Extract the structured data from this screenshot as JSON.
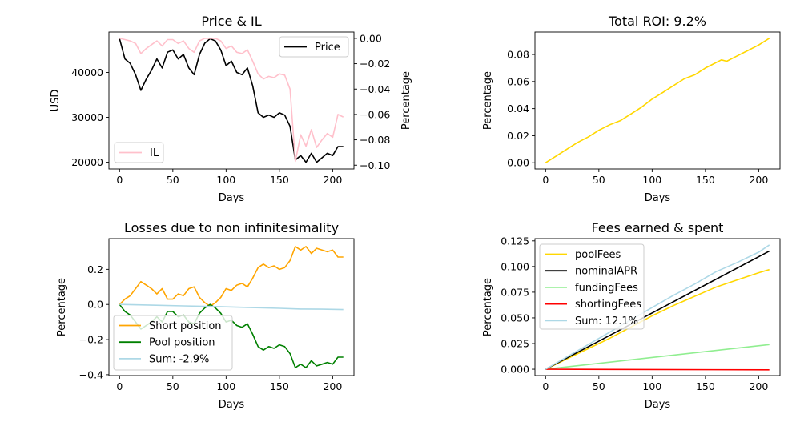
{
  "chart_data": [
    {
      "id": "price_il",
      "type": "line",
      "title": "Price & IL",
      "xlabel": "Days",
      "ylabel": "USD",
      "ylabel_right": "Percentage",
      "xlim": [
        -10,
        220
      ],
      "ylim": [
        18500,
        49000
      ],
      "ylim_right": [
        -0.103,
        0.005
      ],
      "xticks": [
        0,
        50,
        100,
        150,
        200
      ],
      "yticks": [
        20000,
        30000,
        40000
      ],
      "yticks_right": [
        0.0,
        -0.02,
        -0.04,
        -0.06,
        -0.08,
        -0.1
      ],
      "yticks_right_labels": [
        "0.00",
        "−0.02",
        "−0.04",
        "−0.06",
        "−0.08",
        "−0.10"
      ],
      "legend_left": {
        "position": "lower-left",
        "entries": [
          "IL"
        ]
      },
      "legend_right": {
        "position": "upper-right",
        "entries": [
          "Price"
        ]
      },
      "series": [
        {
          "name": "Price",
          "color": "#000000",
          "axis": "left",
          "x": [
            0,
            5,
            10,
            15,
            20,
            25,
            30,
            35,
            40,
            45,
            50,
            55,
            60,
            65,
            70,
            75,
            80,
            85,
            90,
            95,
            100,
            105,
            110,
            115,
            120,
            125,
            130,
            135,
            140,
            145,
            150,
            155,
            160,
            165,
            170,
            175,
            180,
            185,
            190,
            195,
            200,
            205,
            210
          ],
          "y": [
            47500,
            43000,
            42000,
            39500,
            36000,
            38500,
            40500,
            43000,
            41000,
            44500,
            45000,
            43000,
            44000,
            41000,
            39500,
            44000,
            46500,
            47500,
            47000,
            45000,
            41500,
            42500,
            40000,
            39500,
            41000,
            37000,
            31000,
            30000,
            30500,
            30000,
            31000,
            30500,
            28000,
            20500,
            21500,
            20000,
            22000,
            20000,
            21000,
            22000,
            21500,
            23500,
            23500
          ]
        },
        {
          "name": "IL",
          "color": "#ffc0cb",
          "axis": "right",
          "x": [
            0,
            5,
            10,
            15,
            20,
            25,
            30,
            35,
            40,
            45,
            50,
            55,
            60,
            65,
            70,
            75,
            80,
            85,
            90,
            95,
            100,
            105,
            110,
            115,
            120,
            125,
            130,
            135,
            140,
            145,
            150,
            155,
            160,
            165,
            170,
            175,
            180,
            185,
            190,
            195,
            200,
            205,
            210
          ],
          "y": [
            0.0,
            -0.001,
            -0.002,
            -0.004,
            -0.012,
            -0.008,
            -0.005,
            -0.002,
            -0.006,
            -0.001,
            -0.001,
            -0.004,
            -0.002,
            -0.008,
            -0.011,
            -0.002,
            0.0,
            0.0,
            0.0,
            -0.002,
            -0.008,
            -0.006,
            -0.011,
            -0.012,
            -0.009,
            -0.018,
            -0.028,
            -0.032,
            -0.03,
            -0.031,
            -0.028,
            -0.029,
            -0.04,
            -0.097,
            -0.076,
            -0.085,
            -0.072,
            -0.086,
            -0.08,
            -0.075,
            -0.078,
            -0.06,
            -0.062
          ]
        }
      ]
    },
    {
      "id": "roi",
      "type": "line",
      "title": "Total ROI: 9.2%",
      "xlabel": "Days",
      "ylabel": "Percentage",
      "xlim": [
        -10,
        220
      ],
      "ylim": [
        -0.0046,
        0.0966
      ],
      "xticks": [
        0,
        50,
        100,
        150,
        200
      ],
      "yticks": [
        0.0,
        0.02,
        0.04,
        0.06,
        0.08
      ],
      "yticks_labels": [
        "0.00",
        "0.02",
        "0.04",
        "0.06",
        "0.08"
      ],
      "series": [
        {
          "name": "ROI",
          "color": "#ffd700",
          "x": [
            0,
            10,
            20,
            30,
            40,
            50,
            60,
            70,
            80,
            90,
            100,
            110,
            120,
            130,
            140,
            150,
            160,
            165,
            170,
            180,
            190,
            200,
            210
          ],
          "y": [
            0.0,
            0.005,
            0.01,
            0.015,
            0.019,
            0.024,
            0.028,
            0.031,
            0.036,
            0.041,
            0.047,
            0.052,
            0.057,
            0.062,
            0.065,
            0.07,
            0.074,
            0.076,
            0.075,
            0.079,
            0.083,
            0.087,
            0.092
          ]
        }
      ]
    },
    {
      "id": "losses",
      "type": "line",
      "title": "Losses due to non infinitesimality",
      "xlabel": "Days",
      "ylabel": "Percentage",
      "xlim": [
        -10,
        220
      ],
      "ylim": [
        -0.405,
        0.375
      ],
      "xticks": [
        0,
        50,
        100,
        150,
        200
      ],
      "yticks": [
        -0.4,
        -0.2,
        0.0,
        0.2
      ],
      "yticks_labels": [
        "−0.4",
        "−0.2",
        "0.0",
        "0.2"
      ],
      "legend": {
        "position": "lower-left",
        "entries": [
          "Short position",
          "Pool position",
          "Sum: -2.9%"
        ]
      },
      "series": [
        {
          "name": "Short position",
          "color": "#ffa500",
          "x": [
            0,
            5,
            10,
            15,
            20,
            25,
            30,
            35,
            40,
            45,
            50,
            55,
            60,
            65,
            70,
            75,
            80,
            85,
            90,
            95,
            100,
            105,
            110,
            115,
            120,
            125,
            130,
            135,
            140,
            145,
            150,
            155,
            160,
            165,
            170,
            175,
            180,
            185,
            190,
            195,
            200,
            205,
            210
          ],
          "y": [
            0.0,
            0.03,
            0.05,
            0.09,
            0.13,
            0.11,
            0.09,
            0.06,
            0.09,
            0.03,
            0.03,
            0.06,
            0.05,
            0.09,
            0.1,
            0.04,
            0.01,
            -0.01,
            0.01,
            0.04,
            0.09,
            0.08,
            0.11,
            0.12,
            0.1,
            0.15,
            0.21,
            0.23,
            0.21,
            0.22,
            0.2,
            0.21,
            0.25,
            0.33,
            0.31,
            0.33,
            0.29,
            0.32,
            0.31,
            0.3,
            0.31,
            0.27,
            0.27
          ]
        },
        {
          "name": "Pool position",
          "color": "#008000",
          "x": [
            0,
            5,
            10,
            15,
            20,
            25,
            30,
            35,
            40,
            45,
            50,
            55,
            60,
            65,
            70,
            75,
            80,
            85,
            90,
            95,
            100,
            105,
            110,
            115,
            120,
            125,
            130,
            135,
            140,
            145,
            150,
            155,
            160,
            165,
            170,
            175,
            180,
            185,
            190,
            195,
            200,
            205,
            210
          ],
          "y": [
            0.0,
            -0.04,
            -0.06,
            -0.1,
            -0.14,
            -0.12,
            -0.1,
            -0.07,
            -0.1,
            -0.04,
            -0.04,
            -0.07,
            -0.06,
            -0.1,
            -0.11,
            -0.05,
            -0.02,
            0.0,
            -0.02,
            -0.05,
            -0.1,
            -0.09,
            -0.12,
            -0.13,
            -0.11,
            -0.17,
            -0.24,
            -0.26,
            -0.24,
            -0.25,
            -0.23,
            -0.24,
            -0.28,
            -0.36,
            -0.34,
            -0.36,
            -0.32,
            -0.35,
            -0.34,
            -0.33,
            -0.34,
            -0.3,
            -0.3
          ]
        },
        {
          "name": "Sum: -2.9%",
          "color": "#add8e6",
          "x": [
            0,
            30,
            60,
            90,
            120,
            150,
            170,
            190,
            210
          ],
          "y": [
            0.0,
            -0.004,
            -0.008,
            -0.012,
            -0.017,
            -0.022,
            -0.026,
            -0.027,
            -0.029
          ]
        }
      ]
    },
    {
      "id": "fees",
      "type": "line",
      "title": "Fees earned & spent",
      "xlabel": "Days",
      "ylabel": "Percentage",
      "xlim": [
        -10,
        220
      ],
      "ylim": [
        -0.0062,
        0.1272
      ],
      "xticks": [
        0,
        50,
        100,
        150,
        200
      ],
      "yticks": [
        0.0,
        0.025,
        0.05,
        0.075,
        0.1,
        0.125
      ],
      "yticks_labels": [
        "0.000",
        "0.025",
        "0.050",
        "0.075",
        "0.100",
        "0.125"
      ],
      "legend": {
        "position": "upper-left",
        "entries": [
          "poolFees",
          "nominalAPR",
          "fundingFees",
          "shortingFees",
          "Sum: 12.1%"
        ]
      },
      "series": [
        {
          "name": "poolFees",
          "color": "#ffd700",
          "x": [
            0,
            20,
            40,
            60,
            80,
            100,
            120,
            140,
            160,
            180,
            200,
            210
          ],
          "y": [
            0.0,
            0.01,
            0.02,
            0.03,
            0.041,
            0.052,
            0.062,
            0.071,
            0.08,
            0.087,
            0.094,
            0.097
          ]
        },
        {
          "name": "nominalAPR",
          "color": "#000000",
          "x": [
            0,
            210
          ],
          "y": [
            0.0,
            0.115
          ]
        },
        {
          "name": "fundingFees",
          "color": "#90ee90",
          "x": [
            0,
            210
          ],
          "y": [
            0.0,
            0.024
          ]
        },
        {
          "name": "shortingFees",
          "color": "#ff0000",
          "x": [
            0,
            210
          ],
          "y": [
            0.0,
            -0.0006
          ]
        },
        {
          "name": "Sum: 12.1%",
          "color": "#add8e6",
          "x": [
            0,
            20,
            40,
            60,
            80,
            100,
            120,
            140,
            160,
            180,
            200,
            210
          ],
          "y": [
            0.0,
            0.012,
            0.024,
            0.036,
            0.048,
            0.06,
            0.072,
            0.083,
            0.095,
            0.104,
            0.114,
            0.121
          ]
        }
      ]
    }
  ]
}
